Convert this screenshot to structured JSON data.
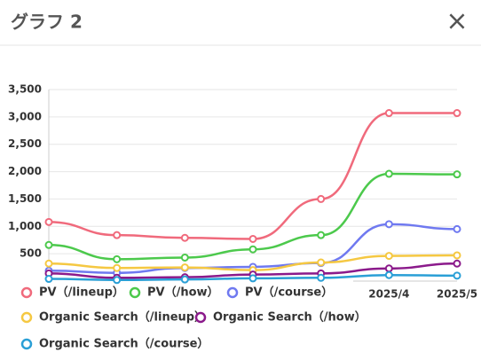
{
  "header": {
    "title": "グラフ 2",
    "close": "×"
  },
  "chart_data": {
    "type": "line",
    "categories": [
      null,
      null,
      null,
      null,
      null,
      "2025/4",
      "2025/5"
    ],
    "ylim": [
      0,
      3500
    ],
    "yticks": [
      {
        "value": 500,
        "label": "500"
      },
      {
        "value": 1000,
        "label": "1,000"
      },
      {
        "value": 1500,
        "label": "1,500"
      },
      {
        "value": 2000,
        "label": "2,000"
      },
      {
        "value": 2500,
        "label": "2,500"
      },
      {
        "value": 3000,
        "label": "3,000"
      },
      {
        "value": 3500,
        "label": "3,500"
      }
    ],
    "grid": true,
    "legend": "bottom",
    "series": [
      {
        "name": "PV（/lineup）",
        "color": "#f06a7c",
        "values": [
          1080,
          840,
          790,
          770,
          1500,
          3070,
          3070
        ]
      },
      {
        "name": "PV（/how）",
        "color": "#4cc94c",
        "values": [
          660,
          400,
          430,
          580,
          840,
          1960,
          1950
        ]
      },
      {
        "name": "PV（/course）",
        "color": "#6f79f0",
        "values": [
          190,
          150,
          240,
          260,
          330,
          1040,
          950
        ]
      },
      {
        "name": "Organic Search（/lineup）",
        "color": "#f5c842",
        "values": [
          320,
          240,
          250,
          200,
          340,
          460,
          470
        ]
      },
      {
        "name": "Organic Search（/how）",
        "color": "#8b1a8b",
        "values": [
          140,
          60,
          70,
          120,
          140,
          230,
          320
        ]
      },
      {
        "name": "Organic Search（/course）",
        "color": "#2a9fd6",
        "values": [
          40,
          20,
          30,
          50,
          60,
          110,
          100
        ]
      }
    ]
  }
}
